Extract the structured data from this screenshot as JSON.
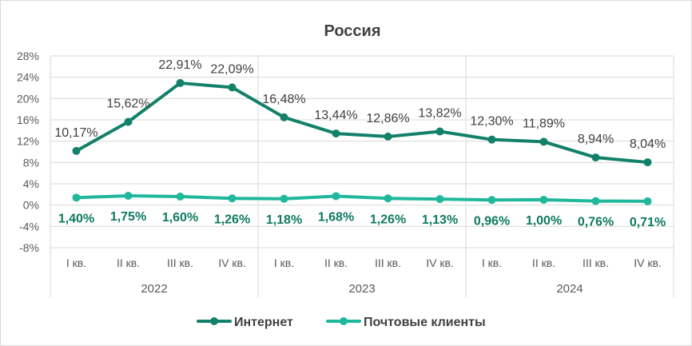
{
  "chart_data": {
    "type": "line",
    "title": "Россия",
    "ylim": [
      -8,
      28
    ],
    "y_ticks": [
      "28%",
      "24%",
      "20%",
      "16%",
      "12%",
      "8%",
      "4%",
      "0%",
      "-4%",
      "-8%"
    ],
    "y_tick_values": [
      28,
      24,
      20,
      16,
      12,
      8,
      4,
      0,
      -4,
      -8
    ],
    "grid": true,
    "legend_position": "bottom",
    "categories": [
      "I кв.",
      "II кв.",
      "III кв.",
      "IV кв.",
      "I кв.",
      "II кв.",
      "III кв.",
      "IV кв.",
      "I кв.",
      "II кв.",
      "III кв.",
      "IV кв."
    ],
    "groups": [
      {
        "label": "2022",
        "count": 4
      },
      {
        "label": "2023",
        "count": 4
      },
      {
        "label": "2024",
        "count": 4
      }
    ],
    "series": [
      {
        "name": "Интернет",
        "color": "#13816a",
        "values": [
          10.17,
          15.62,
          22.91,
          22.09,
          16.48,
          13.44,
          12.86,
          13.82,
          12.3,
          11.89,
          8.94,
          8.04
        ],
        "labels": [
          "10,17%",
          "15,62%",
          "22,91%",
          "22,09%",
          "16,48%",
          "13,44%",
          "12,86%",
          "13,82%",
          "12,30%",
          "11,89%",
          "8,94%",
          "8,04%"
        ]
      },
      {
        "name": "Почтовые клиенты",
        "color": "#1fb89a",
        "values": [
          1.4,
          1.75,
          1.6,
          1.26,
          1.18,
          1.68,
          1.26,
          1.13,
          0.96,
          1.0,
          0.76,
          0.71
        ],
        "labels": [
          "1,40%",
          "1,75%",
          "1,60%",
          "1,26%",
          "1,18%",
          "1,68%",
          "1,26%",
          "1,13%",
          "0,96%",
          "1,00%",
          "0,76%",
          "0,71%"
        ]
      }
    ]
  }
}
